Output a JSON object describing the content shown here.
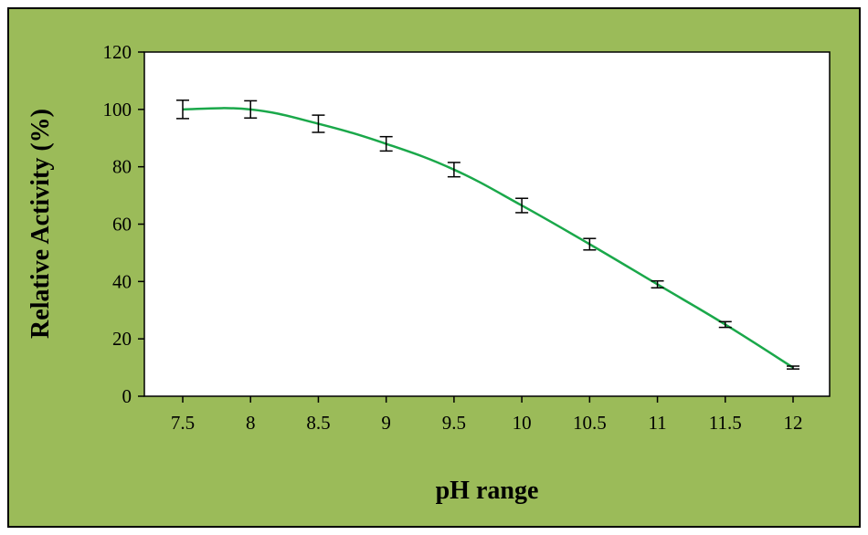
{
  "chart_data": {
    "type": "line",
    "title": "",
    "xlabel": "pH range",
    "ylabel": "Relative Activity (%)",
    "x": [
      "7.5",
      "8",
      "8.5",
      "9",
      "9.5",
      "10",
      "10.5",
      "11",
      "11.5",
      "12"
    ],
    "ylim": [
      0,
      120
    ],
    "y_ticks": [
      "0",
      "20",
      "40",
      "60",
      "80",
      "100",
      "120"
    ],
    "series": [
      {
        "values": [
          100,
          100,
          95,
          88,
          79,
          66.5,
          53,
          39,
          25,
          10
        ],
        "errors": [
          3.2,
          3.0,
          3.0,
          2.5,
          2.5,
          2.5,
          2.0,
          1.2,
          1.0,
          0.5
        ],
        "color": "#1aa84a"
      }
    ],
    "grid": false,
    "legend": "none",
    "colors": {
      "frame_background": "#9bbb59",
      "plot_background": "#ffffff",
      "line": "#1aa84a",
      "error_bar": "#000000"
    }
  }
}
